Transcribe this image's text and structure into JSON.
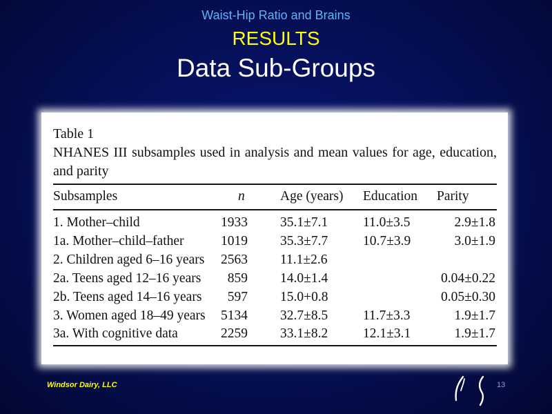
{
  "slide": {
    "subtitle": "Waist-Hip Ratio and Brains",
    "section": "RESULTS",
    "title": "Data Sub-Groups",
    "footer": "Windsor Dairy, LLC",
    "page_number": "13"
  },
  "table": {
    "label": "Table 1",
    "caption": "NHANES III subsamples used in analysis and mean values for age, education, and parity",
    "headers": [
      "Subsamples",
      "n",
      "Age (years)",
      "Education",
      "Parity"
    ],
    "rows": [
      {
        "name": "1. Mother–child",
        "n": "1933",
        "age": "35.1±7.1",
        "education": "11.0±3.5",
        "parity": "2.9±1.8"
      },
      {
        "name": "1a. Mother–child–father",
        "n": "1019",
        "age": "35.3±7.7",
        "education": "10.7±3.9",
        "parity": "3.0±1.9"
      },
      {
        "name": "2. Children aged 6–16 years",
        "n": "2563",
        "age": "11.1±2.6",
        "education": "",
        "parity": ""
      },
      {
        "name": "2a. Teens aged 12–16 years",
        "n": "859",
        "age": "14.0±1.4",
        "education": "",
        "parity": "0.04±0.22"
      },
      {
        "name": "2b. Teens aged 14–16 years",
        "n": "597",
        "age": "15.0+0.8",
        "education": "",
        "parity": "0.05±0.30"
      },
      {
        "name": "3. Women aged 18–49 years",
        "n": "5134",
        "age": "32.7±8.5",
        "education": "11.7±3.3",
        "parity": "1.9±1.7"
      },
      {
        "name": "3a. With cognitive data",
        "n": "2259",
        "age": "33.1±8.2",
        "education": "12.1±3.1",
        "parity": "1.9±1.7"
      }
    ]
  }
}
